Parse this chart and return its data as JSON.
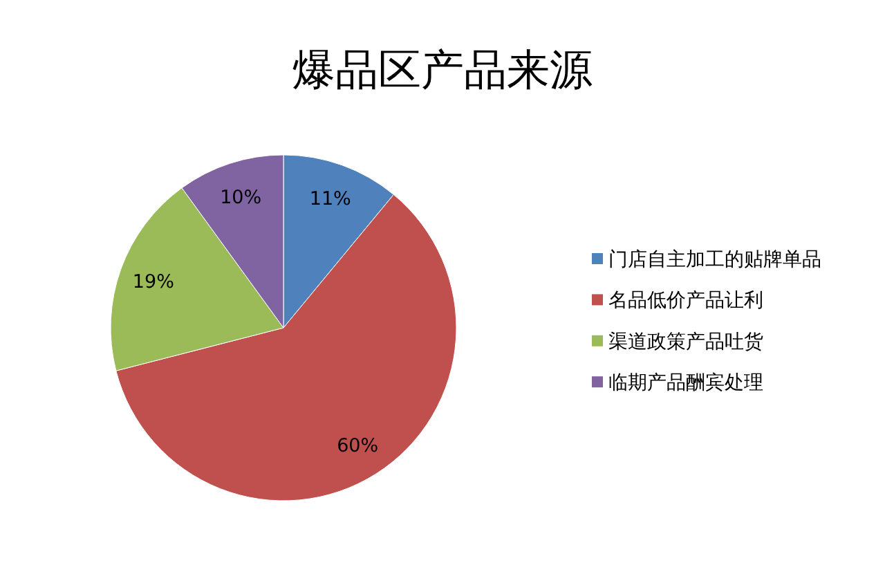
{
  "chart_data": {
    "type": "pie",
    "title": "爆品区产品来源",
    "categories": [
      "门店自主加工的贴牌单品",
      "名品低价产品让利",
      "渠道政策产品吐货",
      "临期产品酬宾处理"
    ],
    "values": [
      11,
      60,
      19,
      10
    ],
    "colors": [
      "#4f81bd",
      "#c0504d",
      "#9bbb59",
      "#8064a2"
    ],
    "value_labels": [
      "11%",
      "60%",
      "19%",
      "10%"
    ],
    "legend": "right"
  }
}
